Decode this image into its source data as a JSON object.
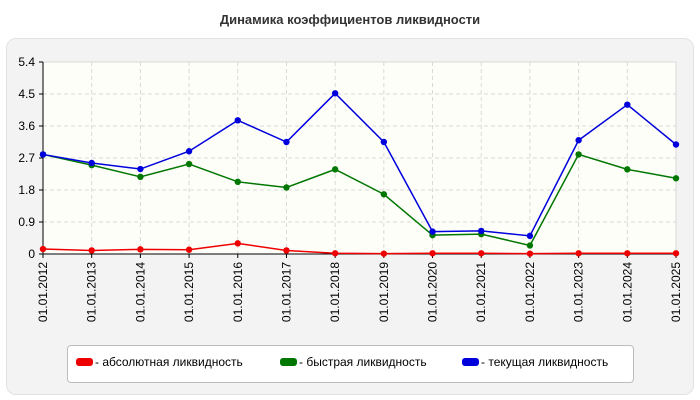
{
  "chart_data": {
    "type": "line",
    "title": "Динамика коэффициентов ликвидности",
    "categories": [
      "01.01.2012",
      "01.01.2013",
      "01.01.2014",
      "01.01.2015",
      "01.01.2016",
      "01.01.2017",
      "01.01.2018",
      "01.01.2019",
      "01.01.2020",
      "01.01.2021",
      "01.01.2022",
      "01.01.2023",
      "01.01.2024",
      "01.01.2025"
    ],
    "y_ticks": [
      "0",
      "0.9",
      "1.8",
      "2.7",
      "3.6",
      "4.5",
      "5.4"
    ],
    "ylim": [
      0,
      5.4
    ],
    "grid": true,
    "legend_position": "bottom",
    "series": [
      {
        "name": "- абсолютная ликвидность",
        "color": "#ee0000",
        "values": [
          0.14,
          0.1,
          0.13,
          0.12,
          0.3,
          0.1,
          0.02,
          0.01,
          0.02,
          0.02,
          0.01,
          0.02,
          0.02,
          0.02
        ]
      },
      {
        "name": "- быстрая ликвидность",
        "color": "#007700",
        "values": [
          2.8,
          2.5,
          2.17,
          2.53,
          2.03,
          1.87,
          2.38,
          1.68,
          0.53,
          0.56,
          0.24,
          2.8,
          2.38,
          2.13
        ]
      },
      {
        "name": "- текущая ликвидность",
        "color": "#0000dd",
        "values": [
          2.8,
          2.56,
          2.39,
          2.89,
          3.76,
          3.15,
          4.52,
          3.15,
          0.63,
          0.65,
          0.51,
          3.2,
          4.2,
          3.08
        ]
      }
    ]
  }
}
